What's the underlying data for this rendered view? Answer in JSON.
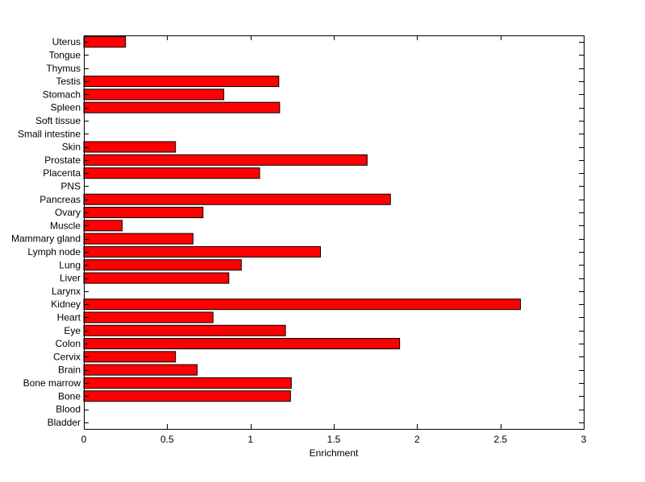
{
  "chart_data": {
    "type": "bar",
    "orientation": "horizontal",
    "title": "",
    "xlabel": "Enrichment",
    "ylabel": "",
    "xlim": [
      0,
      3
    ],
    "xticks": [
      0,
      0.5,
      1,
      1.5,
      2,
      2.5,
      3
    ],
    "xtick_labels": [
      "0",
      "0.5",
      "1",
      "1.5",
      "2",
      "2.5",
      "3"
    ],
    "grid": false,
    "legend": "none",
    "bar_color": "#ff0000",
    "bar_edge_color": "#000000",
    "categories": [
      "Bladder",
      "Blood",
      "Bone",
      "Bone marrow",
      "Brain",
      "Cervix",
      "Colon",
      "Eye",
      "Heart",
      "Kidney",
      "Larynx",
      "Liver",
      "Lung",
      "Lymph node",
      "Mammary gland",
      "Muscle",
      "Ovary",
      "Pancreas",
      "PNS",
      "Placenta",
      "Prostate",
      "Skin",
      "Small intestine",
      "Soft tissue",
      "Spleen",
      "Stomach",
      "Testis",
      "Thymus",
      "Tongue",
      "Uterus"
    ],
    "values": [
      0,
      0,
      1.24,
      1.245,
      0.68,
      0.55,
      1.895,
      1.21,
      0.775,
      2.62,
      0,
      0.87,
      0.945,
      1.42,
      0.655,
      0.23,
      0.715,
      1.84,
      0,
      1.055,
      1.7,
      0.55,
      0,
      0,
      1.175,
      0.84,
      1.17,
      0,
      0,
      0.25
    ]
  }
}
